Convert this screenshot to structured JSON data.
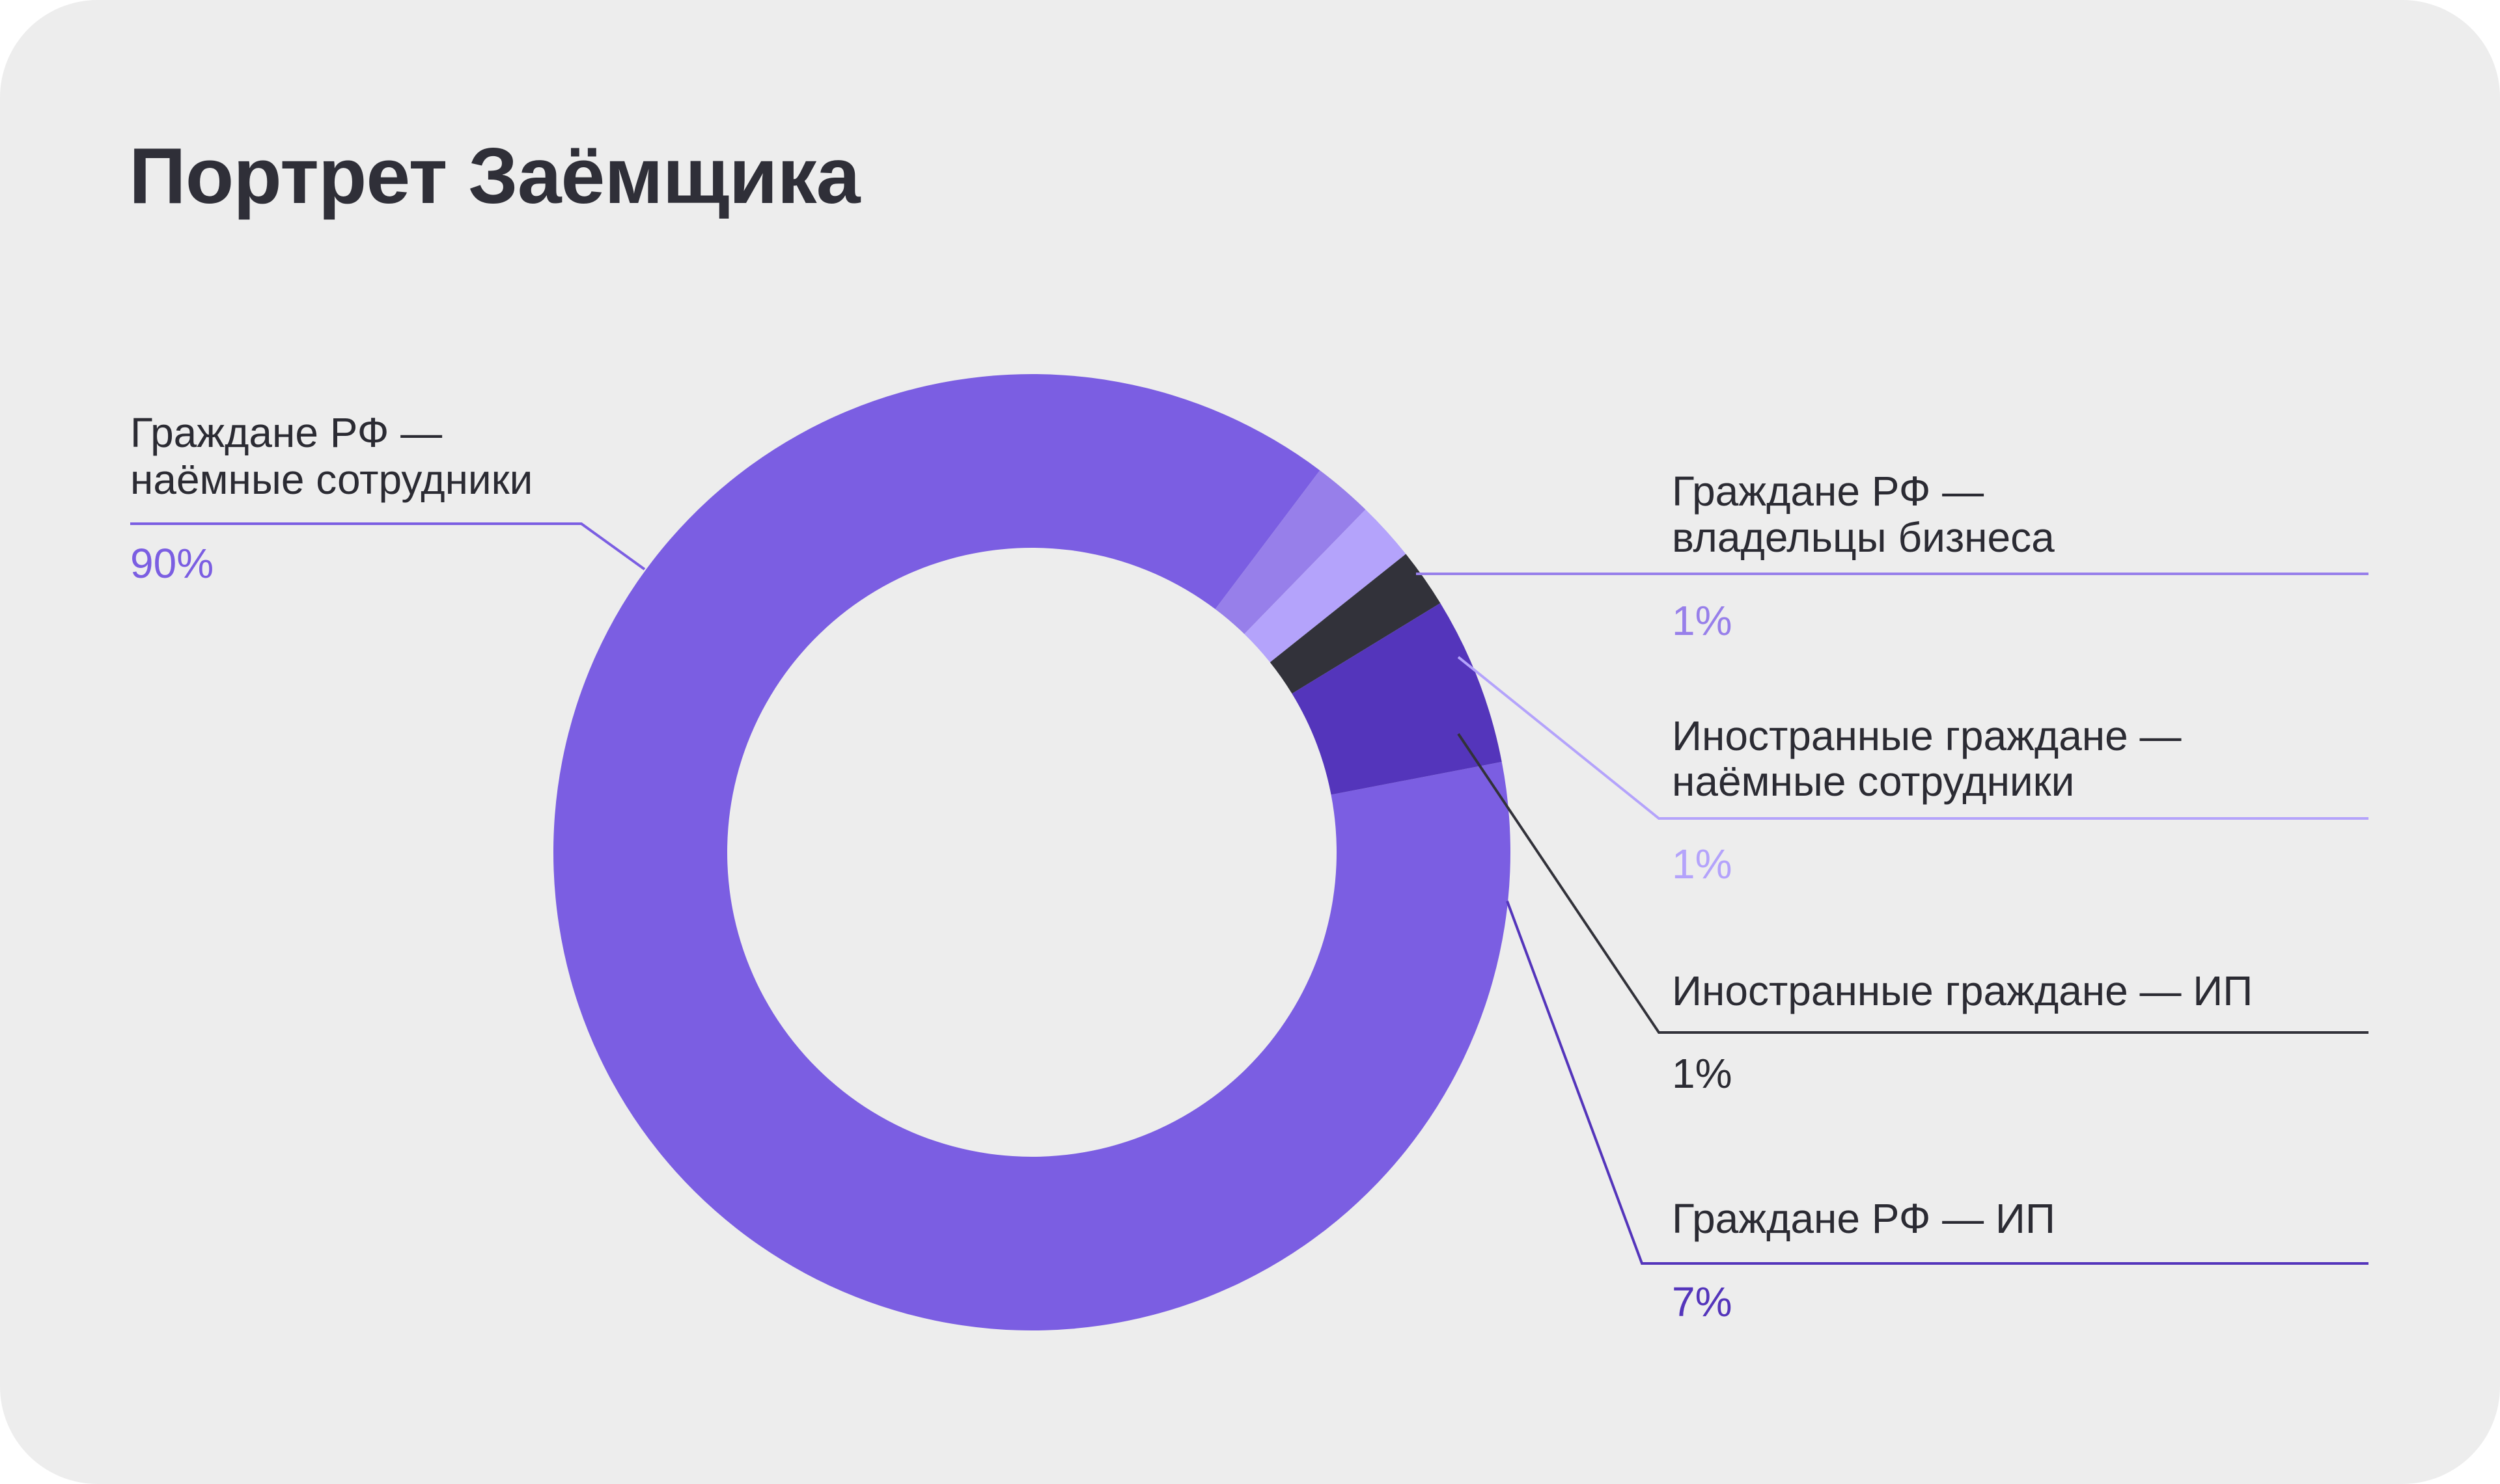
{
  "title": "Портрет Заёмщика",
  "chart_data": {
    "type": "pie",
    "title": "Портрет Заёмщика",
    "slices": [
      {
        "name": "Граждане РФ — наёмные сотрудники",
        "lines": [
          "Граждане РФ —",
          "наёмные сотрудники"
        ],
        "value": 90,
        "label": "90%",
        "color": "#7b5ee2",
        "label_color": "#7b5ee2"
      },
      {
        "name": "Граждане РФ — владельцы бизнеса",
        "lines": [
          "Граждане РФ —",
          "владельцы бизнеса"
        ],
        "value": 1,
        "label": "1%",
        "color": "#977fea",
        "label_color": "#977fea"
      },
      {
        "name": "Иностранные граждане — наёмные сотрудники",
        "lines": [
          "Иностранные граждане —",
          "наёмные сотрудники"
        ],
        "value": 1,
        "label": "1%",
        "color": "#b4a3fb",
        "label_color": "#b4a3fb"
      },
      {
        "name": "Иностранные граждане — ИП",
        "lines": [
          "Иностранные граждане — ИП"
        ],
        "value": 1,
        "label": "1%",
        "color": "#32323a",
        "label_color": "#2b2b33"
      },
      {
        "name": "Граждане РФ — ИП",
        "lines": [
          "Граждане РФ — ИП"
        ],
        "value": 7,
        "label": "7%",
        "color": "#5435bb",
        "label_color": "#5435bb"
      }
    ]
  }
}
